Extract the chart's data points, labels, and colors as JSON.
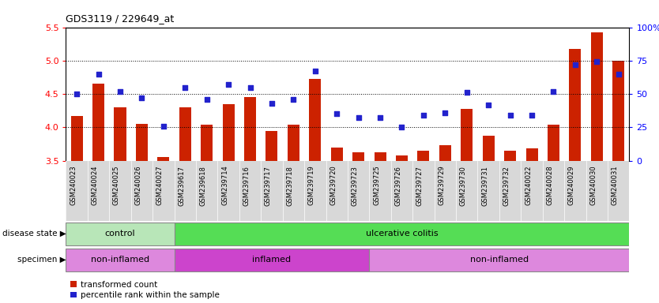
{
  "title": "GDS3119 / 229649_at",
  "samples": [
    "GSM240023",
    "GSM240024",
    "GSM240025",
    "GSM240026",
    "GSM240027",
    "GSM239617",
    "GSM239618",
    "GSM239714",
    "GSM239716",
    "GSM239717",
    "GSM239718",
    "GSM239719",
    "GSM239720",
    "GSM239723",
    "GSM239725",
    "GSM239726",
    "GSM239727",
    "GSM239729",
    "GSM239730",
    "GSM239731",
    "GSM239732",
    "GSM240022",
    "GSM240028",
    "GSM240029",
    "GSM240030",
    "GSM240031"
  ],
  "bar_values": [
    4.17,
    4.65,
    4.3,
    4.05,
    3.55,
    4.3,
    4.04,
    4.35,
    4.45,
    3.95,
    4.04,
    4.72,
    3.7,
    3.62,
    3.63,
    3.58,
    3.65,
    3.73,
    4.27,
    3.87,
    3.65,
    3.68,
    4.04,
    5.17,
    5.42,
    5.0
  ],
  "dot_pct": [
    50,
    65,
    52,
    47,
    26,
    55,
    46,
    57,
    55,
    43,
    46,
    67,
    35,
    32,
    32,
    25,
    34,
    36,
    51,
    42,
    34,
    34,
    52,
    72,
    74,
    65
  ],
  "ylim_left": [
    3.5,
    5.5
  ],
  "yticks_left": [
    3.5,
    4.0,
    4.5,
    5.0,
    5.5
  ],
  "yticks_right": [
    0,
    25,
    50,
    75,
    100
  ],
  "bar_color": "#cc2200",
  "dot_color": "#2222cc",
  "grid_lines": [
    4.0,
    4.5,
    5.0
  ],
  "disease_state": {
    "control": [
      0,
      5
    ],
    "ulcerative_colitis": [
      5,
      26
    ]
  },
  "specimen": {
    "non_inflamed_1": [
      0,
      5
    ],
    "inflamed": [
      5,
      14
    ],
    "non_inflamed_2": [
      14,
      26
    ]
  },
  "control_color": "#b8e6b8",
  "ulcerative_color": "#55dd55",
  "non_inflamed_color": "#dd88dd",
  "inflamed_color": "#cc44cc",
  "legend_items": [
    "transformed count",
    "percentile rank within the sample"
  ],
  "xlabel_bg": "#d8d8d8"
}
